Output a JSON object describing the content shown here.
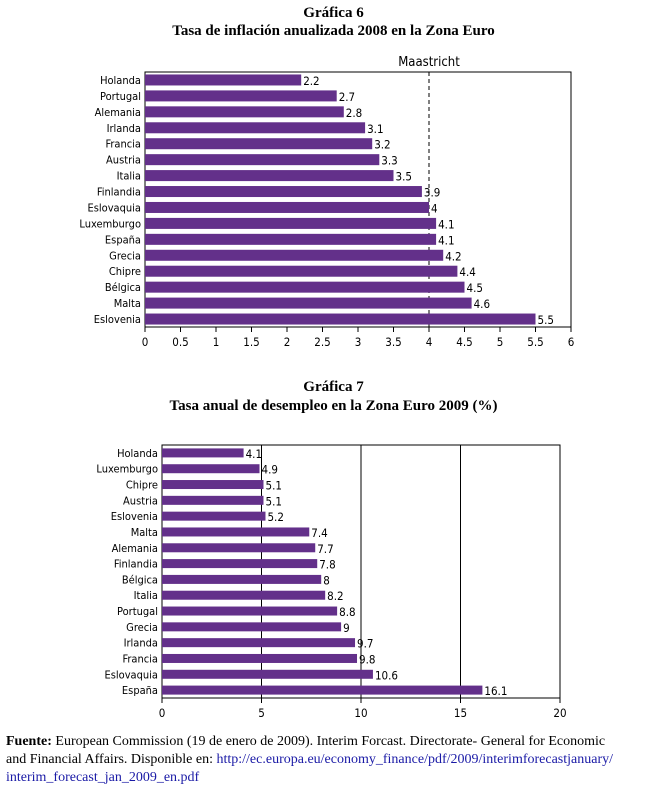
{
  "bar_color": "#63308a",
  "chart_data": [
    {
      "type": "bar",
      "orientation": "horizontal",
      "title": "Gráfica 6",
      "subtitle": "Tasa de inflación anualizada 2008 en la Zona Euro",
      "categories": [
        "Holanda",
        "Portugal",
        "Alemania",
        "Irlanda",
        "Francia",
        "Austria",
        "Italia",
        "Finlandia",
        "Eslovaquia",
        "Luxemburgo",
        "España",
        "Grecia",
        "Chipre",
        "Bélgica",
        "Malta",
        "Eslovenia"
      ],
      "values": [
        2.2,
        2.7,
        2.8,
        3.1,
        3.2,
        3.3,
        3.5,
        3.9,
        4,
        4.1,
        4.1,
        4.2,
        4.4,
        4.5,
        4.6,
        5.5
      ],
      "value_labels": [
        "2.2",
        "2.7",
        "2.8",
        "3.1",
        "3.2",
        "3.3",
        "3.5",
        "3.9",
        "4",
        "4.1",
        "4.1",
        "4.2",
        "4.4",
        "4.5",
        "4.6",
        "5.5"
      ],
      "xlim": [
        0,
        6
      ],
      "xticks": [
        "0",
        "0.5",
        "1",
        "1.5",
        "2",
        "2.5",
        "3",
        "3.5",
        "4",
        "4.5",
        "5",
        "5.5",
        "6"
      ],
      "reference_line": {
        "value": 4,
        "label": "Maastricht",
        "style": "dashed"
      },
      "grid": false
    },
    {
      "type": "bar",
      "orientation": "horizontal",
      "title": "Gráfica 7",
      "subtitle": "Tasa anual de desempleo en la Zona Euro 2009 (%)",
      "categories": [
        "Holanda",
        "Luxemburgo",
        "Chipre",
        "Austria",
        "Eslovenia",
        "Malta",
        "Alemania",
        "Finlandia",
        "Bélgica",
        "Italia",
        "Portugal",
        "Grecia",
        "Irlanda",
        "Francia",
        "Eslovaquia",
        "España"
      ],
      "values": [
        4.1,
        4.9,
        5.1,
        5.1,
        5.2,
        7.4,
        7.7,
        7.8,
        8,
        8.2,
        8.8,
        9,
        9.7,
        9.8,
        10.6,
        16.1
      ],
      "value_labels": [
        "4.1",
        "4.9",
        "5.1",
        "5.1",
        "5.2",
        "7.4",
        "7.7",
        "7.8",
        "8",
        "8.2",
        "8.8",
        "9",
        "9.7",
        "9.8",
        "10.6",
        "16.1"
      ],
      "xlim": [
        0,
        20
      ],
      "xticks": [
        "0",
        "5",
        "10",
        "15",
        "20"
      ],
      "grid": true
    }
  ],
  "source": {
    "label": "Fuente:",
    "line1": " European Commission (19 de enero de 2009). Interim Forcast. Directorate- General for Economic",
    "line2_text": "and Financial Affairs. Disponible en: ",
    "line2_link": "http://ec.europa.eu/economy_finance/pdf/2009/interimforecastjanuary/",
    "line3_link": "interim_forecast_jan_2009_en.pdf"
  }
}
